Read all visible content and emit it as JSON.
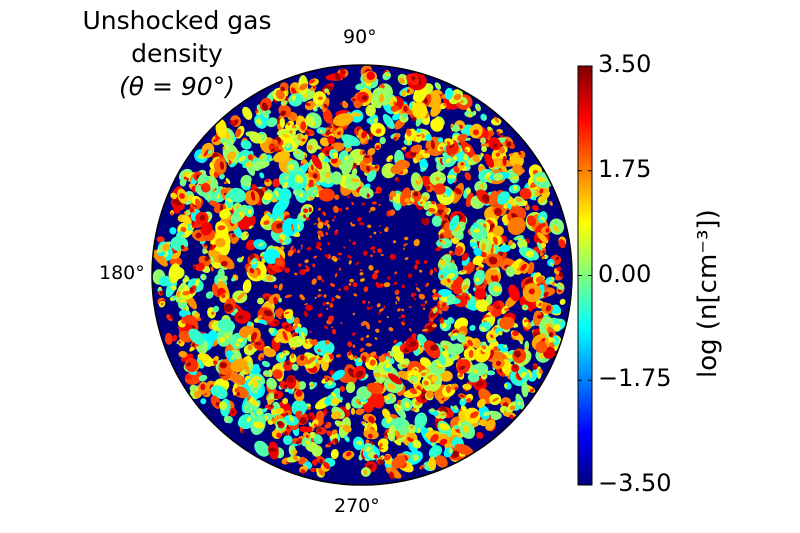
{
  "chart_data": {
    "type": "heatmap",
    "projection": "polar",
    "title_lines": [
      "Unshocked gas",
      "density",
      "(θ = 90°)"
    ],
    "angle_labels": {
      "top": "90°",
      "left": "180°",
      "bottom": "270°"
    },
    "colorbar": {
      "label": "log (n[cm⁻³])",
      "colormap": "jet",
      "range": [
        -3.5,
        3.5
      ],
      "ticks": [
        3.5,
        1.75,
        0.0,
        -1.75,
        -3.5
      ],
      "tick_labels": [
        "3.50",
        "1.75",
        "0.00",
        "−1.75",
        "−3.50"
      ]
    },
    "background_value": -3.5,
    "field_description_values": {
      "clump_value_range": [
        -1.0,
        2.8
      ],
      "inner_region_typical": -3.5
    }
  },
  "colors": {
    "jet_stops": [
      "#00007f",
      "#0000ff",
      "#007fff",
      "#00ffff",
      "#7fff7f",
      "#ffff00",
      "#ff7f00",
      "#ff0000",
      "#7f0000"
    ]
  }
}
